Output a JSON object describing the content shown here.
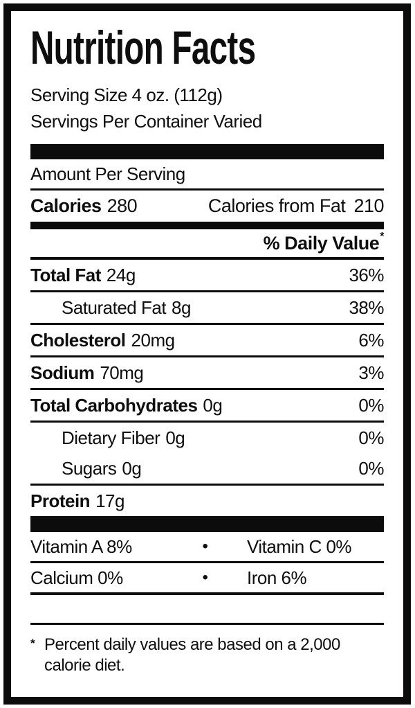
{
  "nutrition": {
    "title": "Nutrition Facts",
    "serving": {
      "size": "Serving Size 4 oz. (112g)",
      "per_container": "Servings Per Container Varied"
    },
    "amount_per_serving": "Amount Per Serving",
    "calories": {
      "label": "Calories",
      "value": "280"
    },
    "calories_from_fat": {
      "label": "Calories from Fat",
      "value": "210"
    },
    "daily_value": {
      "label": "% Daily Value",
      "asterisk": "*"
    },
    "nutrients": [
      {
        "name": "Total Fat",
        "amount": "24g",
        "dv": "36%"
      },
      {
        "name": "Saturated Fat",
        "amount": "8g",
        "dv": "38%"
      },
      {
        "name": "Cholesterol",
        "amount": "20mg",
        "dv": "6%"
      },
      {
        "name": "Sodium",
        "amount": "70mg",
        "dv": "3%"
      },
      {
        "name": "Total Carbohydrates",
        "amount": "0g",
        "dv": "0%"
      },
      {
        "name": "Dietary Fiber",
        "amount": "0g",
        "dv": "0%"
      },
      {
        "name": "Sugars",
        "amount": "0g",
        "dv": "0%"
      },
      {
        "name": "Protein",
        "amount": "17g",
        "dv": ""
      }
    ],
    "micros": [
      {
        "left": "Vitamin A 8%",
        "bullet": "•",
        "right": "Vitamin C 0%"
      },
      {
        "left": "Calcium 0%",
        "bullet": "•",
        "right": "Iron 6%"
      }
    ],
    "footnote": {
      "asterisk": "*",
      "text": "Percent daily values are based on a 2,000 calorie diet."
    },
    "colors": {
      "ink": "#0c0c0c",
      "paper": "#ffffff"
    }
  }
}
